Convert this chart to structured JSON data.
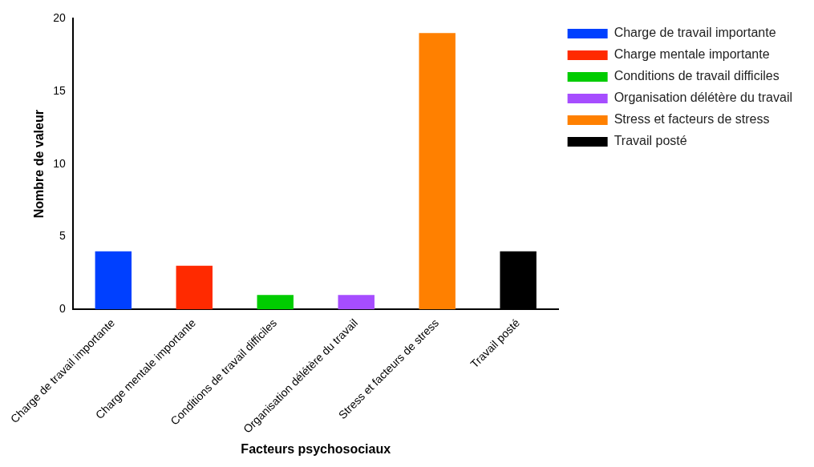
{
  "chart_data": {
    "type": "bar",
    "xlabel": "Facteurs psychosociaux",
    "ylabel": "Nombre de valeur",
    "categories": [
      "Charge de travail importante",
      "Charge mentale importante",
      "Conditions de travail difficiles",
      "Organisation délétère du travail",
      "Stress et facteurs de stress",
      "Travail posté"
    ],
    "series": [
      {
        "name": "Charge de travail importante",
        "color": "#0040ff",
        "values": [
          4,
          null,
          null,
          null,
          null,
          null
        ]
      },
      {
        "name": "Charge mentale importante",
        "color": "#ff2a00",
        "values": [
          null,
          3,
          null,
          null,
          null,
          null
        ]
      },
      {
        "name": "Conditions de travail difficiles",
        "color": "#00cc00",
        "values": [
          null,
          null,
          1,
          null,
          null,
          null
        ]
      },
      {
        "name": "Organisation délétère du travail",
        "color": "#a64dff",
        "values": [
          null,
          null,
          null,
          1,
          null,
          null
        ]
      },
      {
        "name": "Stress et facteurs de stress",
        "color": "#ff8000",
        "values": [
          null,
          null,
          null,
          null,
          19,
          null
        ]
      },
      {
        "name": "Travail posté",
        "color": "#000000",
        "values": [
          null,
          null,
          null,
          null,
          null,
          4
        ]
      }
    ],
    "ylim": [
      0,
      20
    ],
    "yticks": [
      0,
      5,
      10,
      15,
      20
    ],
    "grid": false,
    "legend": "top right"
  }
}
